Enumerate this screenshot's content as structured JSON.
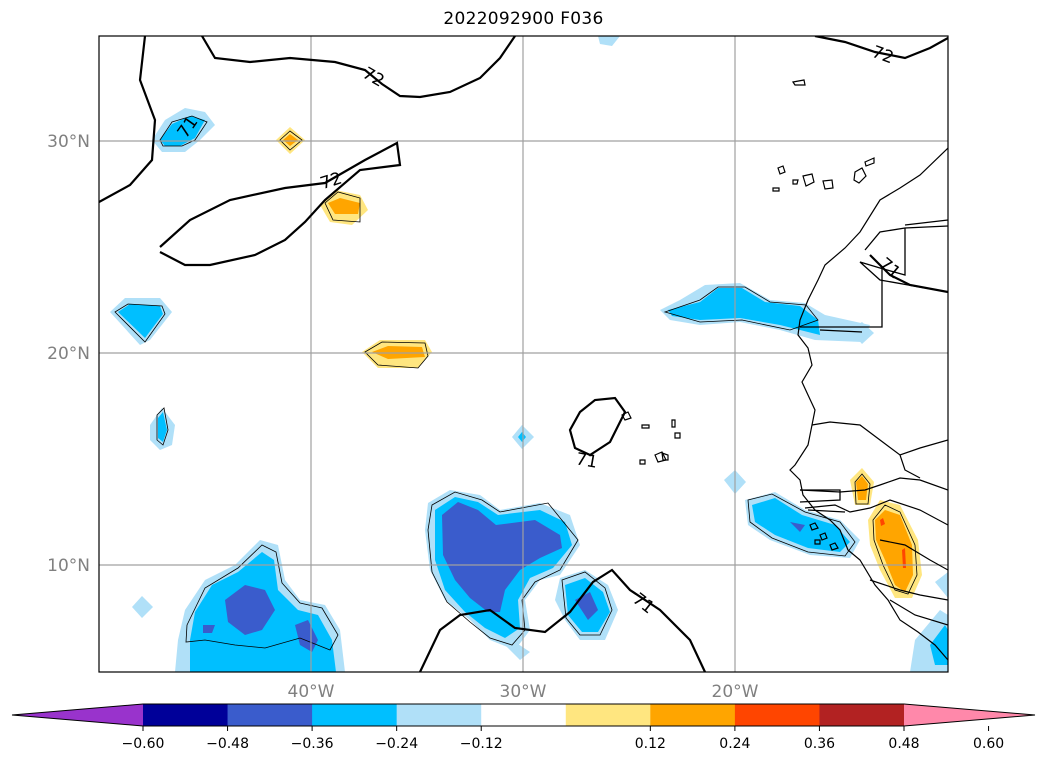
{
  "title": "2022092900 F036",
  "map": {
    "lat_labels": [
      "30°N",
      "20°N",
      "10°N"
    ],
    "lon_labels": [
      "40°W",
      "30°W",
      "20°W"
    ],
    "contour_labels": [
      "72",
      "72",
      "72",
      "71",
      "71",
      "71",
      "71"
    ]
  },
  "colorbar": {
    "ticks": [
      "−0.60",
      "−0.48",
      "−0.36",
      "−0.24",
      "−0.12",
      "0.12",
      "0.24",
      "0.36",
      "0.48",
      "0.60"
    ],
    "colors": [
      "#9933cc",
      "#000099",
      "#3a5ccc",
      "#00bfff",
      "#b0e0f8",
      "#ffffff",
      "#ffe680",
      "#ffa500",
      "#ff4500",
      "#b22222",
      "#ff88aa"
    ]
  }
}
